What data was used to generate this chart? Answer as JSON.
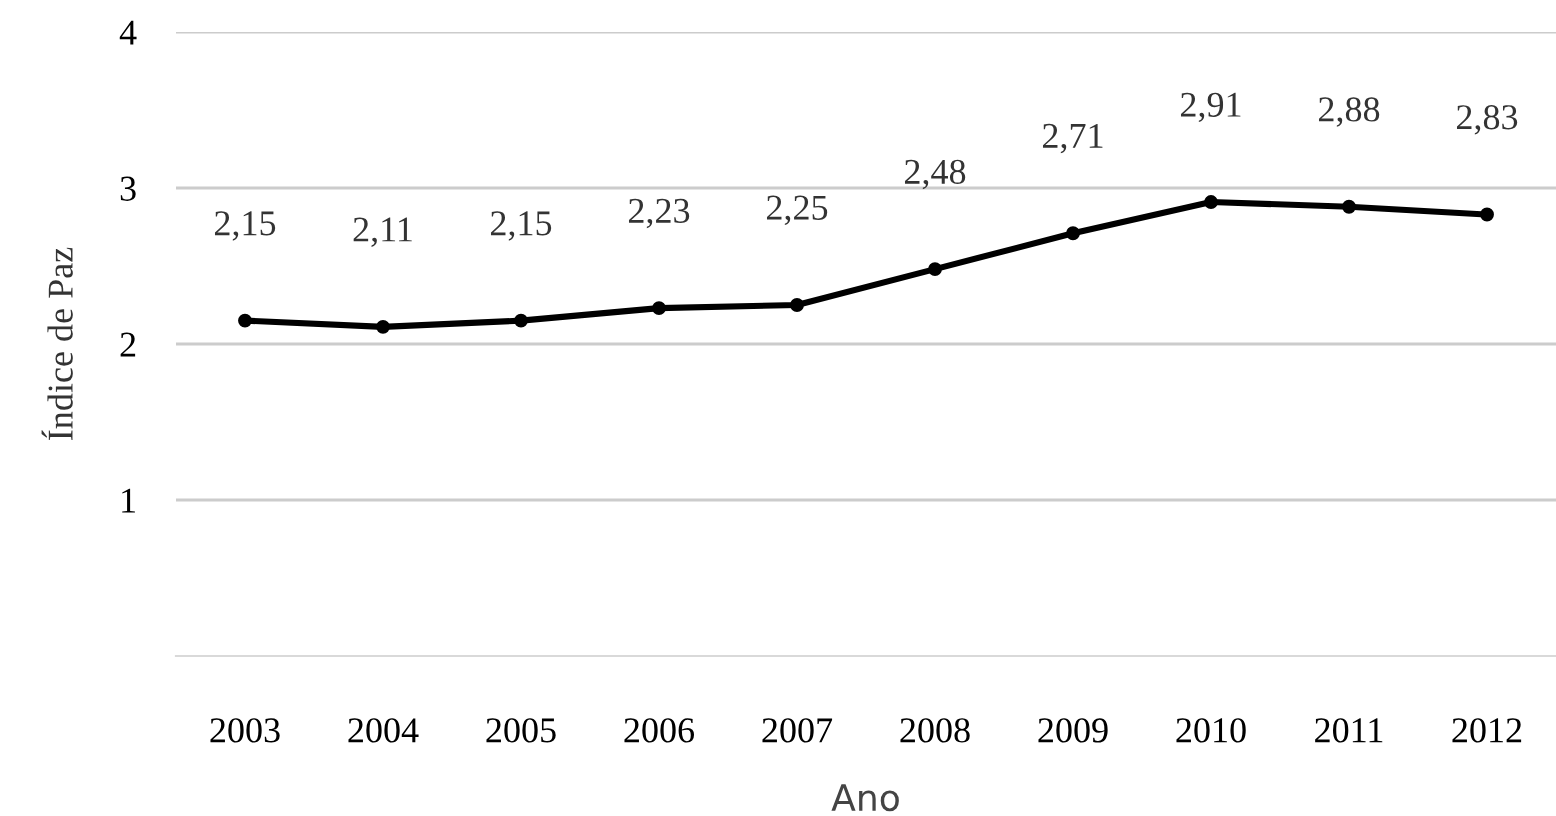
{
  "chart_data": {
    "type": "line",
    "xlabel": "Ano",
    "ylabel": "Índice de Paz",
    "categories": [
      "2003",
      "2004",
      "2005",
      "2006",
      "2007",
      "2008",
      "2009",
      "2010",
      "2011",
      "2012"
    ],
    "series": [
      {
        "color": "#000000",
        "values": [
          2.15,
          2.11,
          2.15,
          2.23,
          2.25,
          2.48,
          2.71,
          2.91,
          2.88,
          2.83
        ],
        "value_labels": [
          "2,15",
          "2,11",
          "2,15",
          "2,23",
          "2,25",
          "2,48",
          "2,71",
          "2,91",
          "2,88",
          "2,83"
        ]
      }
    ],
    "ylim": [
      0,
      4
    ],
    "yticks": [
      1,
      2,
      3,
      4
    ],
    "grid": "y",
    "marker": "circle",
    "line_style": "solid",
    "legend": false
  }
}
